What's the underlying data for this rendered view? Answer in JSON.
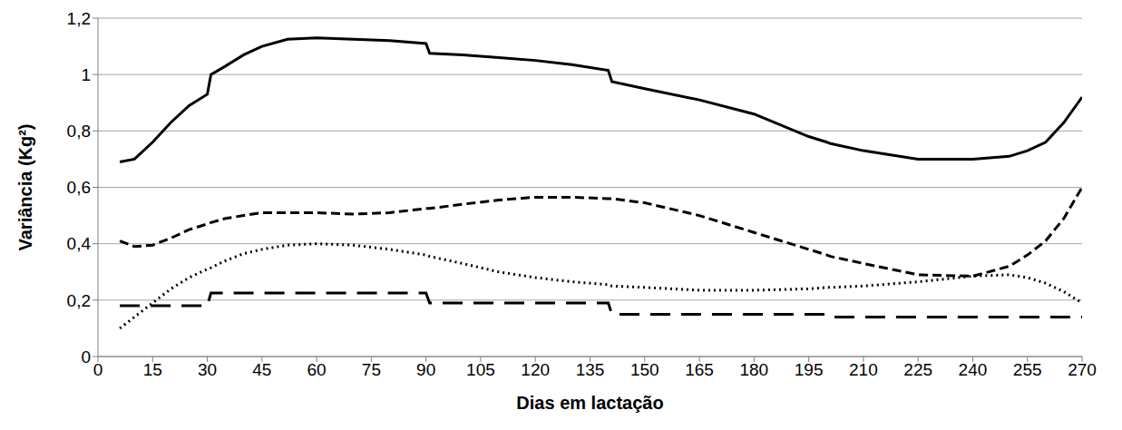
{
  "chart_data": {
    "type": "line",
    "x_label": "Dias em lactação",
    "y_label": "Variância (Kg²)",
    "x": [
      6,
      10,
      15,
      20,
      25,
      30,
      31,
      35,
      40,
      45,
      52,
      60,
      70,
      80,
      90,
      91,
      100,
      110,
      120,
      130,
      140,
      141,
      150,
      165,
      180,
      195,
      200,
      201,
      210,
      225,
      240,
      250,
      255,
      260,
      265,
      270
    ],
    "series": [
      {
        "color": "#000000",
        "line_style": "solid",
        "values": [
          0.69,
          0.7,
          0.76,
          0.83,
          0.89,
          0.93,
          1.0,
          1.03,
          1.07,
          1.1,
          1.125,
          1.13,
          1.125,
          1.12,
          1.11,
          1.075,
          1.07,
          1.06,
          1.05,
          1.035,
          1.015,
          0.975,
          0.95,
          0.91,
          0.86,
          0.78,
          0.76,
          0.755,
          0.73,
          0.7,
          0.7,
          0.71,
          0.73,
          0.76,
          0.83,
          0.92
        ]
      },
      {
        "color": "#000000",
        "line_style": "dashed",
        "values": [
          0.41,
          0.39,
          0.395,
          0.42,
          0.45,
          0.47,
          0.475,
          0.49,
          0.5,
          0.51,
          0.51,
          0.51,
          0.505,
          0.51,
          0.525,
          0.525,
          0.54,
          0.555,
          0.565,
          0.565,
          0.56,
          0.56,
          0.545,
          0.5,
          0.44,
          0.38,
          0.36,
          0.355,
          0.33,
          0.29,
          0.285,
          0.32,
          0.36,
          0.41,
          0.49,
          0.6
        ]
      },
      {
        "color": "#000000",
        "line_style": "dotted",
        "values": [
          0.1,
          0.14,
          0.19,
          0.24,
          0.28,
          0.31,
          0.315,
          0.34,
          0.365,
          0.38,
          0.395,
          0.4,
          0.395,
          0.38,
          0.36,
          0.355,
          0.33,
          0.3,
          0.28,
          0.265,
          0.255,
          0.25,
          0.245,
          0.235,
          0.235,
          0.24,
          0.245,
          0.245,
          0.25,
          0.265,
          0.285,
          0.29,
          0.28,
          0.26,
          0.23,
          0.19
        ]
      },
      {
        "color": "#000000",
        "line_style": "longdash",
        "values": [
          0.18,
          0.18,
          0.18,
          0.18,
          0.18,
          0.18,
          0.225,
          0.225,
          0.225,
          0.225,
          0.225,
          0.225,
          0.225,
          0.225,
          0.225,
          0.19,
          0.19,
          0.19,
          0.19,
          0.19,
          0.19,
          0.15,
          0.15,
          0.15,
          0.15,
          0.15,
          0.15,
          0.14,
          0.14,
          0.14,
          0.14,
          0.14,
          0.14,
          0.14,
          0.14,
          0.14
        ]
      }
    ],
    "xlim": [
      0,
      270
    ],
    "xticks": [
      0,
      15,
      30,
      45,
      60,
      75,
      90,
      105,
      120,
      135,
      150,
      165,
      180,
      195,
      210,
      225,
      240,
      255,
      270
    ],
    "ylim": [
      0,
      1.2
    ],
    "yticks": [
      0,
      {
        "value": 0.2,
        "label": "0,2"
      },
      {
        "value": 0.4,
        "label": "0,4"
      },
      {
        "value": 0.6,
        "label": "0,6"
      },
      {
        "value": 0.8,
        "label": "0,8"
      },
      1,
      {
        "value": 1.2,
        "label": "1,2"
      }
    ],
    "grid": true
  }
}
